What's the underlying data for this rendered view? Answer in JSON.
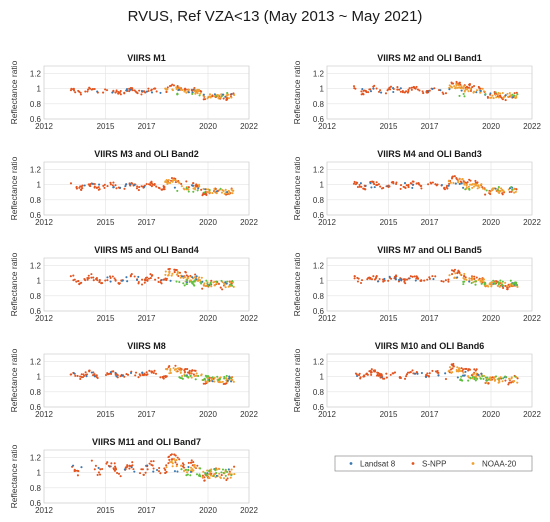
{
  "title": "RVUS, Ref VZA<13 (May 2013 ~ May 2021)",
  "ylabel": "Reflectance ratio",
  "xticks": [
    2012,
    2015,
    2017,
    2020,
    2022
  ],
  "yticks": [
    "0.6",
    "0.8",
    "1",
    "1.2"
  ],
  "legend": [
    {
      "name": "Landsat 8",
      "color": "#3a78b0"
    },
    {
      "name": "S-NPP",
      "color": "#e2541f"
    },
    {
      "name": "NOAA-20",
      "color": "#f0a030"
    }
  ],
  "green_color": "#5fbf3f",
  "chart_data": [
    {
      "type": "scatter",
      "title": "VIIRS M1",
      "xlim": [
        2012,
        2022
      ],
      "ylim": [
        0.6,
        1.3
      ],
      "level": 0.97,
      "spread": 0.04,
      "peak": 0.08
    },
    {
      "type": "scatter",
      "title": "VIIRS M2 and OLI Band1",
      "xlim": [
        2012,
        2022
      ],
      "ylim": [
        0.6,
        1.3
      ],
      "level": 0.98,
      "spread": 0.05,
      "peak": 0.12
    },
    {
      "type": "scatter",
      "title": "VIIRS M3 and OLI Band2",
      "xlim": [
        2012,
        2022
      ],
      "ylim": [
        0.6,
        1.3
      ],
      "level": 0.98,
      "spread": 0.05,
      "peak": 0.12
    },
    {
      "type": "scatter",
      "title": "VIIRS M4 and OLI Band3",
      "xlim": [
        2012,
        2022
      ],
      "ylim": [
        0.6,
        1.3
      ],
      "level": 0.99,
      "spread": 0.05,
      "peak": 0.12
    },
    {
      "type": "scatter",
      "title": "VIIRS M5 and OLI Band4",
      "xlim": [
        2012,
        2022
      ],
      "ylim": [
        0.6,
        1.3
      ],
      "level": 1.02,
      "spread": 0.06,
      "peak": 0.14
    },
    {
      "type": "scatter",
      "title": "VIIRS M7 and OLI Band5",
      "xlim": [
        2012,
        2022
      ],
      "ylim": [
        0.6,
        1.3
      ],
      "level": 1.02,
      "spread": 0.05,
      "peak": 0.12
    },
    {
      "type": "scatter",
      "title": "VIIRS M8",
      "xlim": [
        2012,
        2022
      ],
      "ylim": [
        0.6,
        1.3
      ],
      "level": 1.03,
      "spread": 0.05,
      "peak": 0.12
    },
    {
      "type": "scatter",
      "title": "VIIRS M10 and OLI Band6",
      "xlim": [
        2012,
        2022
      ],
      "ylim": [
        0.6,
        1.3
      ],
      "level": 1.03,
      "spread": 0.06,
      "peak": 0.14
    },
    {
      "type": "scatter",
      "title": "VIIRS M11 and OLI Band7",
      "xlim": [
        2012,
        2022
      ],
      "ylim": [
        0.6,
        1.3
      ],
      "level": 1.06,
      "spread": 0.09,
      "peak": 0.16
    }
  ]
}
